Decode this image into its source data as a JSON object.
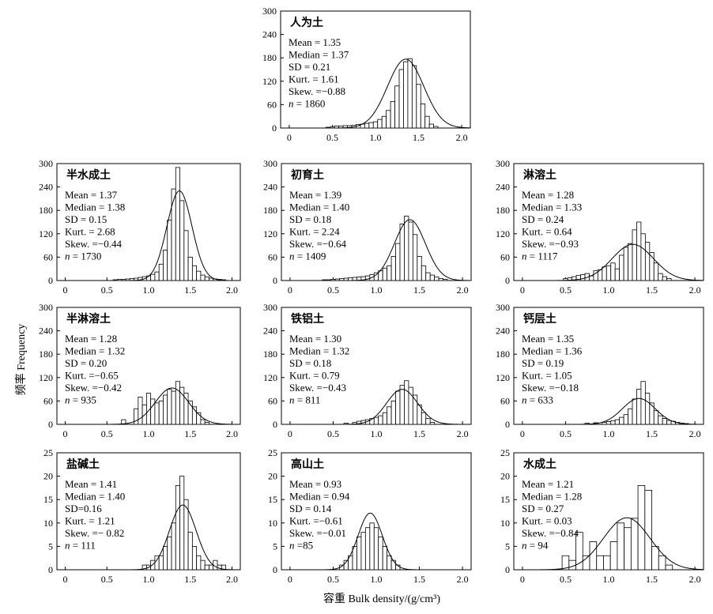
{
  "figure": {
    "ylabel": "频率 Frequency",
    "xlabel": "容重 Bulk density/(g/cm³)"
  },
  "chart_data": [
    {
      "type": "bar",
      "title": "人为土",
      "stats": [
        "Mean = 1.35",
        "Median = 1.37",
        "SD = 0.21",
        "Kurt. = 1.61",
        "Skew. =−0.88",
        "= 1860"
      ],
      "n_label": "n",
      "xticks": [
        "0",
        "0.5",
        "1.0",
        "1.5",
        "2.0"
      ],
      "yticks": [
        "0",
        "60",
        "120",
        "180",
        "240",
        "300"
      ],
      "xlim": [
        -0.1,
        2.1
      ],
      "ylim": [
        0,
        300
      ],
      "bin_width": 0.05,
      "x": [
        0.45,
        0.5,
        0.55,
        0.6,
        0.65,
        0.7,
        0.75,
        0.8,
        0.85,
        0.9,
        0.95,
        1.0,
        1.05,
        1.1,
        1.15,
        1.2,
        1.25,
        1.3,
        1.35,
        1.4,
        1.45,
        1.5,
        1.55,
        1.6,
        1.65,
        1.7
      ],
      "values": [
        2,
        3,
        5,
        5,
        6,
        6,
        7,
        9,
        10,
        12,
        14,
        16,
        22,
        30,
        45,
        68,
        108,
        150,
        170,
        178,
        160,
        112,
        62,
        30,
        10,
        4
      ],
      "normal_fit": {
        "mean": 1.35,
        "sd": 0.21,
        "n": 1860
      }
    },
    {
      "type": "bar",
      "title": "半水成土",
      "stats": [
        "Mean = 1.37",
        "Median = 1.38",
        "SD = 0.15",
        "Kurt. = 2.68",
        "Skew. =−0.44",
        "= 1730"
      ],
      "n_label": "n",
      "xticks": [
        "0",
        "0.5",
        "1.0",
        "1.5",
        "2.0"
      ],
      "yticks": [
        "0",
        "60",
        "120",
        "180",
        "240",
        "300"
      ],
      "xlim": [
        -0.1,
        2.1
      ],
      "ylim": [
        0,
        300
      ],
      "bin_width": 0.05,
      "x": [
        0.6,
        0.65,
        0.7,
        0.75,
        0.8,
        0.85,
        0.9,
        0.95,
        1.0,
        1.05,
        1.1,
        1.15,
        1.2,
        1.25,
        1.3,
        1.35,
        1.4,
        1.45,
        1.5,
        1.55,
        1.6,
        1.65,
        1.7,
        1.75,
        1.8,
        1.85,
        1.9
      ],
      "values": [
        2,
        3,
        3,
        4,
        5,
        6,
        8,
        10,
        12,
        16,
        22,
        42,
        78,
        155,
        235,
        290,
        205,
        128,
        60,
        38,
        24,
        14,
        9,
        6,
        4,
        3,
        2
      ],
      "normal_fit": {
        "mean": 1.37,
        "sd": 0.15,
        "n": 1730
      }
    },
    {
      "type": "bar",
      "title": "初育土",
      "stats": [
        "Mean = 1.39",
        "Median = 1.40",
        "SD = 0.18",
        "Kurt. = 2.24",
        "Skew. =−0.64",
        "= 1409"
      ],
      "n_label": "n",
      "xticks": [
        "0",
        "0.5",
        "1.0",
        "1.5",
        "2.0"
      ],
      "yticks": [
        "0",
        "60",
        "120",
        "180",
        "240",
        "300"
      ],
      "xlim": [
        -0.1,
        2.1
      ],
      "ylim": [
        0,
        300
      ],
      "bin_width": 0.05,
      "x": [
        0.4,
        0.45,
        0.5,
        0.55,
        0.6,
        0.65,
        0.7,
        0.75,
        0.8,
        0.85,
        0.9,
        0.95,
        1.0,
        1.05,
        1.1,
        1.15,
        1.2,
        1.25,
        1.3,
        1.35,
        1.4,
        1.45,
        1.5,
        1.55,
        1.6,
        1.65,
        1.7,
        1.75,
        1.8
      ],
      "values": [
        2,
        2,
        3,
        4,
        5,
        6,
        7,
        8,
        9,
        10,
        12,
        15,
        20,
        25,
        32,
        38,
        62,
        95,
        145,
        165,
        150,
        118,
        62,
        38,
        20,
        14,
        9,
        5,
        3
      ],
      "normal_fit": {
        "mean": 1.39,
        "sd": 0.18,
        "n": 1409
      }
    },
    {
      "type": "bar",
      "title": "淋溶土",
      "stats": [
        "Mean = 1.28",
        "Median = 1.33",
        "SD = 0.24",
        "Kurt. = 0.64",
        "Skew. =−0.93",
        "= 1117"
      ],
      "n_label": "n",
      "xticks": [
        "0",
        "0.5",
        "1.0",
        "1.5",
        "2.0"
      ],
      "yticks": [
        "0",
        "60",
        "120",
        "180",
        "240",
        "300"
      ],
      "xlim": [
        -0.1,
        2.1
      ],
      "ylim": [
        0,
        300
      ],
      "bin_width": 0.05,
      "x": [
        0.5,
        0.55,
        0.6,
        0.65,
        0.7,
        0.75,
        0.8,
        0.85,
        0.9,
        0.95,
        1.0,
        1.05,
        1.1,
        1.15,
        1.2,
        1.25,
        1.3,
        1.35,
        1.4,
        1.45,
        1.5,
        1.55,
        1.6,
        1.65,
        1.7
      ],
      "values": [
        5,
        7,
        10,
        13,
        15,
        18,
        12,
        25,
        28,
        35,
        38,
        45,
        30,
        65,
        85,
        95,
        130,
        150,
        120,
        98,
        72,
        45,
        18,
        10,
        5
      ],
      "normal_fit": {
        "mean": 1.28,
        "sd": 0.24,
        "n": 1117
      }
    },
    {
      "type": "bar",
      "title": "半淋溶土",
      "stats": [
        "Mean = 1.28",
        "Median = 1.32",
        "SD = 0.20",
        "Kurt. =−0.65",
        "Skew. =−0.42",
        "= 935"
      ],
      "n_label": "n",
      "xticks": [
        "0",
        "0.5",
        "1.0",
        "1.5",
        "2.0"
      ],
      "yticks": [
        "0",
        "60",
        "120",
        "180",
        "240",
        "300"
      ],
      "xlim": [
        -0.1,
        2.1
      ],
      "ylim": [
        0,
        300
      ],
      "bin_width": 0.05,
      "x": [
        0.7,
        0.85,
        0.9,
        0.95,
        1.0,
        1.05,
        1.1,
        1.15,
        1.2,
        1.25,
        1.3,
        1.35,
        1.4,
        1.45,
        1.5,
        1.55,
        1.6,
        1.65,
        1.7
      ],
      "values": [
        12,
        40,
        70,
        50,
        80,
        65,
        55,
        60,
        75,
        90,
        85,
        110,
        95,
        80,
        60,
        45,
        30,
        12,
        5
      ],
      "normal_fit": {
        "mean": 1.28,
        "sd": 0.2,
        "n": 935
      }
    },
    {
      "type": "bar",
      "title": "铁铝土",
      "stats": [
        "Mean = 1.30",
        "Median = 1.32",
        "SD = 0.18",
        "Kurt. = 0.79",
        "Skew. =−0.43",
        "= 811"
      ],
      "n_label": "n",
      "xticks": [
        "0",
        "0.5",
        "1.0",
        "1.5",
        "2.0"
      ],
      "yticks": [
        "0",
        "60",
        "120",
        "180",
        "240",
        "300"
      ],
      "xlim": [
        -0.1,
        2.1
      ],
      "ylim": [
        0,
        300
      ],
      "bin_width": 0.05,
      "x": [
        0.65,
        0.75,
        0.8,
        0.85,
        0.9,
        0.95,
        1.0,
        1.05,
        1.1,
        1.15,
        1.2,
        1.25,
        1.3,
        1.35,
        1.4,
        1.45,
        1.5,
        1.55,
        1.6,
        1.65
      ],
      "values": [
        3,
        5,
        8,
        10,
        12,
        15,
        18,
        22,
        30,
        45,
        60,
        85,
        100,
        112,
        95,
        75,
        50,
        30,
        15,
        5
      ],
      "normal_fit": {
        "mean": 1.3,
        "sd": 0.18,
        "n": 811
      }
    },
    {
      "type": "bar",
      "title": "钙层土",
      "stats": [
        "Mean = 1.35",
        "Median = 1.36",
        "SD = 0.19",
        "Kurt. = 1.05",
        "Skew. =−0.18",
        "= 633"
      ],
      "n_label": "n",
      "xticks": [
        "0",
        "0.5",
        "1.0",
        "1.5",
        "2.0"
      ],
      "yticks": [
        "0",
        "60",
        "120",
        "180",
        "240",
        "300"
      ],
      "xlim": [
        -0.1,
        2.1
      ],
      "ylim": [
        0,
        300
      ],
      "bin_width": 0.05,
      "x": [
        0.75,
        0.85,
        0.95,
        1.0,
        1.05,
        1.1,
        1.15,
        1.2,
        1.25,
        1.3,
        1.35,
        1.4,
        1.45,
        1.5,
        1.55,
        1.6,
        1.65,
        1.7,
        1.75,
        1.8,
        1.85,
        1.9
      ],
      "values": [
        3,
        4,
        5,
        7,
        9,
        12,
        18,
        25,
        40,
        65,
        90,
        110,
        80,
        55,
        35,
        22,
        15,
        10,
        8,
        5,
        3,
        2
      ],
      "normal_fit": {
        "mean": 1.35,
        "sd": 0.19,
        "n": 633
      }
    },
    {
      "type": "bar",
      "title": "盐碱土",
      "stats": [
        "Mean = 1.41",
        "Median = 1.40",
        "SD=0.16",
        "Kurt. = 1.21",
        "Skew. =− 0.82",
        "= 111"
      ],
      "n_label": "n",
      "xticks": [
        "0",
        "0.5",
        "1.0",
        "1.5",
        "2.0"
      ],
      "yticks": [
        "0",
        "5",
        "10",
        "15",
        "20",
        "25"
      ],
      "xlim": [
        -0.1,
        2.1
      ],
      "ylim": [
        0,
        25
      ],
      "bin_width": 0.05,
      "x": [
        0.95,
        1.0,
        1.05,
        1.1,
        1.15,
        1.2,
        1.25,
        1.3,
        1.35,
        1.4,
        1.45,
        1.5,
        1.55,
        1.6,
        1.65,
        1.7,
        1.75,
        1.8,
        1.85,
        1.9
      ],
      "values": [
        1,
        1,
        2,
        3,
        3,
        5,
        7,
        10,
        18,
        20,
        15,
        8,
        5,
        3,
        2,
        1,
        1,
        2,
        1,
        1
      ],
      "normal_fit": {
        "mean": 1.41,
        "sd": 0.16,
        "n": 111
      }
    },
    {
      "type": "bar",
      "title": "高山土",
      "stats": [
        "Mean = 0.93",
        "Median = 0.94",
        "SD = 0.14",
        "Kurt. =−0.61",
        "Skew. =−0.01",
        "=85"
      ],
      "n_label": "n",
      "xticks": [
        "0",
        "0.5",
        "1.0",
        "1.5",
        "2.0"
      ],
      "yticks": [
        "0",
        "5",
        "10",
        "15",
        "20",
        "25"
      ],
      "xlim": [
        -0.1,
        2.1
      ],
      "ylim": [
        0,
        25
      ],
      "bin_width": 0.05,
      "x": [
        0.6,
        0.65,
        0.7,
        0.75,
        0.8,
        0.85,
        0.9,
        0.95,
        1.0,
        1.05,
        1.1,
        1.15,
        1.2,
        1.25
      ],
      "values": [
        1,
        2,
        3,
        5,
        7,
        8,
        9,
        10,
        9,
        7,
        5,
        3,
        2,
        1
      ],
      "normal_fit": {
        "mean": 0.93,
        "sd": 0.14,
        "n": 85
      }
    },
    {
      "type": "bar",
      "title": "水成土",
      "stats": [
        "Mean = 1.21",
        "Median = 1.28",
        "SD = 0.27",
        "Kurt. = 0.03",
        "Skew. =−0.84",
        "= 94"
      ],
      "n_label": "n",
      "xticks": [
        "0",
        "0.5",
        "1.0",
        "1.5",
        "2.0"
      ],
      "yticks": [
        "0",
        "5",
        "10",
        "15",
        "20",
        "25"
      ],
      "xlim": [
        -0.1,
        2.1
      ],
      "ylim": [
        0,
        25
      ],
      "bin_width": 0.08,
      "x": [
        0.5,
        0.58,
        0.66,
        0.74,
        0.82,
        0.9,
        0.98,
        1.06,
        1.14,
        1.22,
        1.3,
        1.38,
        1.46,
        1.54,
        1.62,
        1.7
      ],
      "values": [
        3,
        2,
        8,
        3,
        6,
        3,
        3,
        6,
        10,
        9,
        11,
        18,
        17,
        5,
        3,
        1
      ],
      "normal_fit": {
        "mean": 1.21,
        "sd": 0.27,
        "n": 94
      }
    }
  ]
}
